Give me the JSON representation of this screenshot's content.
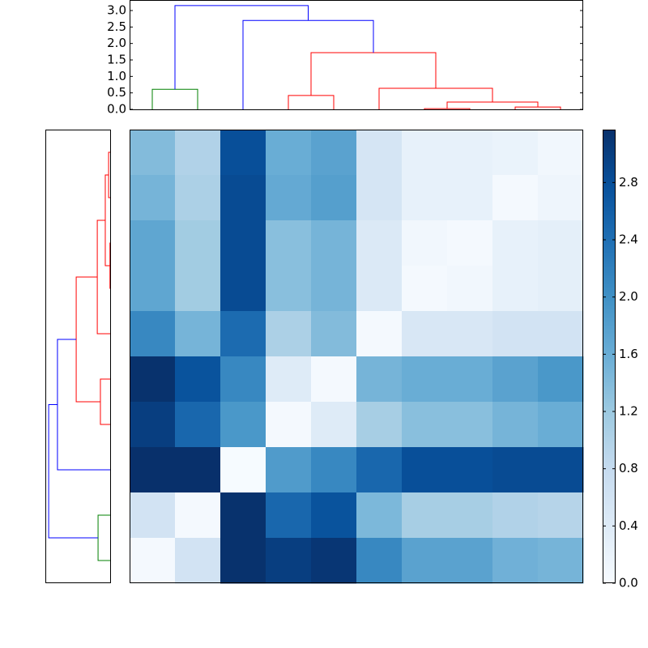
{
  "chart_data": {
    "type": "clustermap",
    "cmap": "Blues",
    "clim": [
      0,
      3.17
    ],
    "colorbar_ticks": [
      {
        "value": 0,
        "label": "0.0"
      },
      0.4,
      0.8,
      1.2,
      1.6,
      {
        "value": 2,
        "label": "2.0"
      },
      2.4,
      2.8
    ],
    "values": [
      [
        1.4,
        1.0,
        2.8,
        1.6,
        1.75,
        0.55,
        0.25,
        0.25,
        0.2,
        0.1
      ],
      [
        1.5,
        1.05,
        2.85,
        1.65,
        1.8,
        0.55,
        0.25,
        0.25,
        0.05,
        0.15
      ],
      [
        1.7,
        1.15,
        2.85,
        1.35,
        1.5,
        0.45,
        0.1,
        0.05,
        0.25,
        0.3
      ],
      [
        1.7,
        1.15,
        2.85,
        1.35,
        1.5,
        0.45,
        0.05,
        0.1,
        0.25,
        0.3
      ],
      [
        2.1,
        1.5,
        2.45,
        1.05,
        1.4,
        0.05,
        0.5,
        0.5,
        0.6,
        0.6
      ],
      [
        3.15,
        2.75,
        2.1,
        0.4,
        0.05,
        1.5,
        1.6,
        1.6,
        1.75,
        1.9
      ],
      [
        3.0,
        2.5,
        1.9,
        0.05,
        0.4,
        1.1,
        1.35,
        1.35,
        1.5,
        1.6
      ],
      [
        3.17,
        3.17,
        0.01,
        1.85,
        2.1,
        2.5,
        2.8,
        2.8,
        2.85,
        2.85
      ],
      [
        0.6,
        0.05,
        3.15,
        2.5,
        2.75,
        1.45,
        1.1,
        1.1,
        1.0,
        0.95
      ],
      [
        0.05,
        0.6,
        3.15,
        3.0,
        3.1,
        2.1,
        1.75,
        1.75,
        1.55,
        1.5
      ]
    ],
    "dendrogram_top": {
      "leaf_lim": [
        0,
        100
      ],
      "height_lim": [
        0,
        3.32
      ],
      "height_ticks": [
        {
          "value": 0,
          "label": "0.0"
        },
        0.5,
        {
          "value": 1,
          "label": "1.0"
        },
        1.5,
        {
          "value": 2,
          "label": "2.0"
        },
        2.5,
        {
          "value": 3,
          "label": "3.0"
        }
      ],
      "links": [
        {
          "color": "#008000",
          "icoord": [
            5,
            5,
            15,
            15
          ],
          "dcoord": [
            0,
            0.61,
            0.61,
            0
          ]
        },
        {
          "color": "#ff0000",
          "icoord": [
            35,
            35,
            45,
            45
          ],
          "dcoord": [
            0,
            0.42,
            0.42,
            0
          ]
        },
        {
          "color": "#ff0000",
          "icoord": [
            65,
            65,
            75,
            75
          ],
          "dcoord": [
            0,
            0.02,
            0.02,
            0
          ]
        },
        {
          "color": "#ff0000",
          "icoord": [
            85,
            85,
            95,
            95
          ],
          "dcoord": [
            0,
            0.07,
            0.07,
            0
          ]
        },
        {
          "color": "#ff0000",
          "icoord": [
            70,
            70,
            90,
            90
          ],
          "dcoord": [
            0.02,
            0.22,
            0.22,
            0.07
          ]
        },
        {
          "color": "#ff0000",
          "icoord": [
            55,
            55,
            80,
            80
          ],
          "dcoord": [
            0,
            0.64,
            0.64,
            0.22
          ]
        },
        {
          "color": "#ff0000",
          "icoord": [
            40,
            40,
            67.5,
            67.5
          ],
          "dcoord": [
            0.42,
            1.72,
            1.72,
            0.64
          ]
        },
        {
          "color": "#0000ff",
          "icoord": [
            25,
            25,
            53.75,
            53.75
          ],
          "dcoord": [
            0,
            2.7,
            2.7,
            1.72
          ]
        },
        {
          "color": "#0000ff",
          "icoord": [
            10,
            10,
            39.375,
            39.375
          ],
          "dcoord": [
            0.61,
            3.15,
            3.15,
            2.7
          ]
        }
      ]
    },
    "dendrogram_left": {
      "leaf_lim": [
        0,
        100
      ],
      "height_lim": [
        0,
        3.32
      ],
      "links": [
        {
          "color": "#ff0000",
          "icoord": [
            5,
            5,
            15,
            15
          ],
          "dcoord": [
            0,
            0.08,
            0.08,
            0
          ]
        },
        {
          "color": "#ff0000",
          "icoord": [
            25,
            25,
            35,
            35
          ],
          "dcoord": [
            0,
            0.01,
            0.01,
            0
          ]
        },
        {
          "color": "#ff0000",
          "icoord": [
            10,
            10,
            30,
            30
          ],
          "dcoord": [
            0.08,
            0.25,
            0.25,
            0.01
          ]
        },
        {
          "color": "#ff0000",
          "icoord": [
            20,
            20,
            45,
            45
          ],
          "dcoord": [
            0.25,
            0.66,
            0.66,
            0
          ]
        },
        {
          "color": "#ff0000",
          "icoord": [
            55,
            55,
            65,
            65
          ],
          "dcoord": [
            0,
            0.5,
            0.5,
            0
          ]
        },
        {
          "color": "#ff0000",
          "icoord": [
            32.5,
            32.5,
            60,
            60
          ],
          "dcoord": [
            0.66,
            1.74,
            1.74,
            0.5
          ]
        },
        {
          "color": "#0000ff",
          "icoord": [
            46.25,
            46.25,
            75,
            75
          ],
          "dcoord": [
            1.74,
            2.7,
            2.7,
            0
          ]
        },
        {
          "color": "#008000",
          "icoord": [
            85,
            85,
            95,
            95
          ],
          "dcoord": [
            0,
            0.62,
            0.62,
            0
          ]
        },
        {
          "color": "#0000ff",
          "icoord": [
            60.625,
            60.625,
            90,
            90
          ],
          "dcoord": [
            2.7,
            3.15,
            3.15,
            0.62
          ]
        }
      ]
    }
  }
}
